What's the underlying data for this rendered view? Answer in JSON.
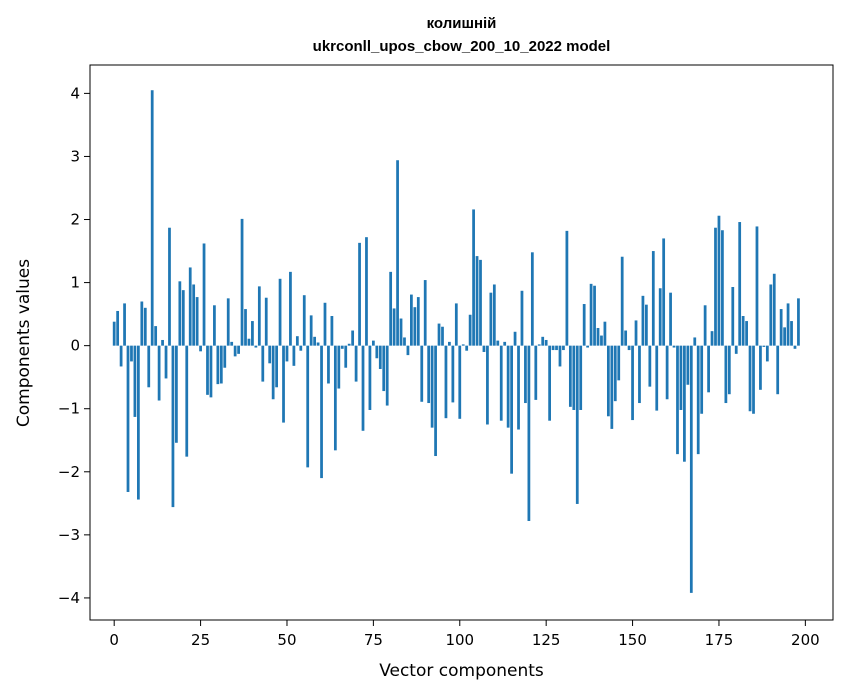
{
  "chart_data": {
    "type": "bar",
    "title_line1": "колишній",
    "title_line2": "ukrconll_upos_cbow_200_10_2022 model",
    "xlabel": "Vector components",
    "ylabel": "Components values",
    "xlim": [
      -7,
      208
    ],
    "ylim": [
      -4.35,
      4.45
    ],
    "xticks": [
      0,
      25,
      50,
      75,
      100,
      125,
      150,
      175,
      200
    ],
    "yticks": [
      4,
      3,
      2,
      1,
      0,
      -1,
      -2,
      -3,
      -4
    ],
    "ytick_labels": [
      "4",
      "3",
      "2",
      "1",
      "0",
      "−1",
      "−2",
      "−3",
      "−4"
    ],
    "grid": false,
    "bar_color": "#1f77b4",
    "values": [
      0.38,
      0.55,
      -0.33,
      0.67,
      -2.32,
      -0.25,
      -1.13,
      -2.44,
      0.7,
      0.6,
      -0.66,
      4.05,
      0.31,
      -0.87,
      0.09,
      -0.52,
      1.87,
      -2.56,
      -1.54,
      1.02,
      0.88,
      -1.76,
      1.24,
      0.97,
      0.77,
      -0.09,
      1.62,
      -0.78,
      -0.82,
      0.64,
      -0.61,
      -0.6,
      -0.35,
      0.75,
      0.06,
      -0.17,
      -0.13,
      2.01,
      0.58,
      0.11,
      0.39,
      -0.03,
      0.94,
      -0.57,
      0.76,
      -0.28,
      -0.85,
      -0.66,
      1.06,
      -1.22,
      -0.25,
      1.17,
      -0.32,
      0.15,
      -0.08,
      0.8,
      -1.93,
      0.48,
      0.14,
      0.05,
      -2.1,
      0.68,
      -0.6,
      0.47,
      -1.66,
      -0.68,
      -0.05,
      -0.35,
      0.03,
      0.24,
      -0.57,
      1.63,
      -1.35,
      1.72,
      -1.02,
      0.08,
      -0.2,
      -0.37,
      -0.72,
      -0.95,
      1.17,
      0.59,
      2.94,
      0.43,
      0.13,
      -0.15,
      0.81,
      0.61,
      0.77,
      -0.89,
      1.04,
      -0.91,
      -1.3,
      -1.75,
      0.35,
      0.3,
      -1.15,
      0.06,
      -0.9,
      0.67,
      -1.16,
      0.02,
      -0.08,
      0.49,
      2.16,
      1.42,
      1.36,
      -0.1,
      -1.25,
      0.84,
      0.97,
      0.08,
      -1.19,
      0.06,
      -1.3,
      -2.03,
      0.22,
      -1.33,
      0.87,
      -0.91,
      -2.78,
      1.48,
      -0.86,
      0.02,
      0.14,
      0.09,
      -1.19,
      -0.07,
      -0.07,
      -0.33,
      -0.07,
      1.82,
      -0.97,
      -1.02,
      -2.51,
      -1.02,
      0.66,
      -0.03,
      0.98,
      0.95,
      0.28,
      0.16,
      0.38,
      -1.12,
      -1.32,
      -0.88,
      -0.55,
      1.41,
      0.24,
      -0.07,
      -1.18,
      0.4,
      -0.91,
      0.79,
      0.65,
      -0.65,
      1.5,
      -1.03,
      0.91,
      1.7,
      -0.85,
      0.84,
      -0.03,
      -1.72,
      -1.02,
      -1.84,
      -0.62,
      -3.92,
      0.13,
      -1.72,
      -1.08,
      0.64,
      -0.74,
      0.23,
      1.87,
      2.06,
      1.83,
      -0.91,
      -0.77,
      0.93,
      -0.13,
      1.96,
      0.47,
      0.39,
      -1.04,
      -1.08,
      1.89,
      -0.7,
      -0.02,
      -0.25,
      0.97,
      1.14,
      -0.77,
      0.58,
      0.29,
      0.67,
      0.39,
      -0.05,
      0.75
    ]
  }
}
